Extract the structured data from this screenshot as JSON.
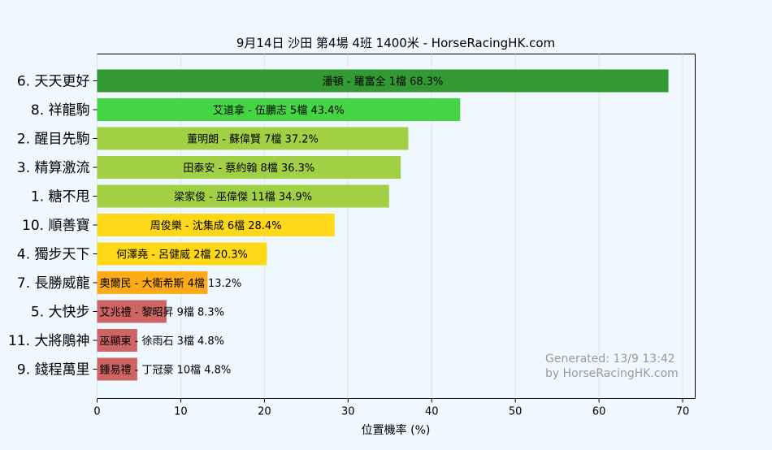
{
  "chart_data": {
    "type": "bar",
    "orientation": "horizontal",
    "title": "9月14日  沙田  第4場  4班  1400米 - HorseRacingHK.com",
    "xlabel": "位置機率 (%)",
    "ylabel": "",
    "xlim": [
      0,
      71.5
    ],
    "xticks": [
      0,
      10,
      20,
      30,
      40,
      50,
      60,
      70
    ],
    "grid": "vertical",
    "categories": [
      "6. 天天更好",
      "8. 祥龍駒",
      "2. 醒目先駒",
      "3. 精算激流",
      "1. 糖不甩",
      "10. 順善寶",
      "4. 獨步天下",
      "7. 長勝威龍",
      "5. 大快步",
      "11. 大將鵰神",
      "9. 錢程萬里"
    ],
    "values": [
      68.3,
      43.4,
      37.2,
      36.3,
      34.9,
      28.4,
      20.3,
      13.2,
      8.3,
      4.8,
      4.8
    ],
    "labels": [
      "潘頓 - 羅富全 1檔  68.3%",
      "艾道拿 - 伍鵬志 5檔  43.4%",
      "董明朗 - 蘇偉賢 7檔  37.2%",
      "田泰安 - 蔡約翰 8檔  36.3%",
      "梁家俊 - 巫偉傑 11檔  34.9%",
      "周俊樂 - 沈集成 6檔  28.4%",
      "何澤堯 - 呂健威 2檔  20.3%",
      "奧爾民 - 大衛希斯 4檔  13.2%",
      "艾兆禮 - 黎昭昇 9檔  8.3%",
      "巫顯東 - 徐雨石 3檔  4.8%",
      "鍾易禮 - 丁冠豪 10檔  4.8%"
    ],
    "colors": [
      "#339933",
      "#44d444",
      "#a2d044",
      "#a2d044",
      "#a2d044",
      "#ffd919",
      "#ffd919",
      "#ffab19",
      "#cd6565",
      "#cd6565",
      "#cd6565"
    ],
    "watermark": [
      "Generated: 13/9 13:42",
      "by HorseRacingHK.com"
    ]
  }
}
